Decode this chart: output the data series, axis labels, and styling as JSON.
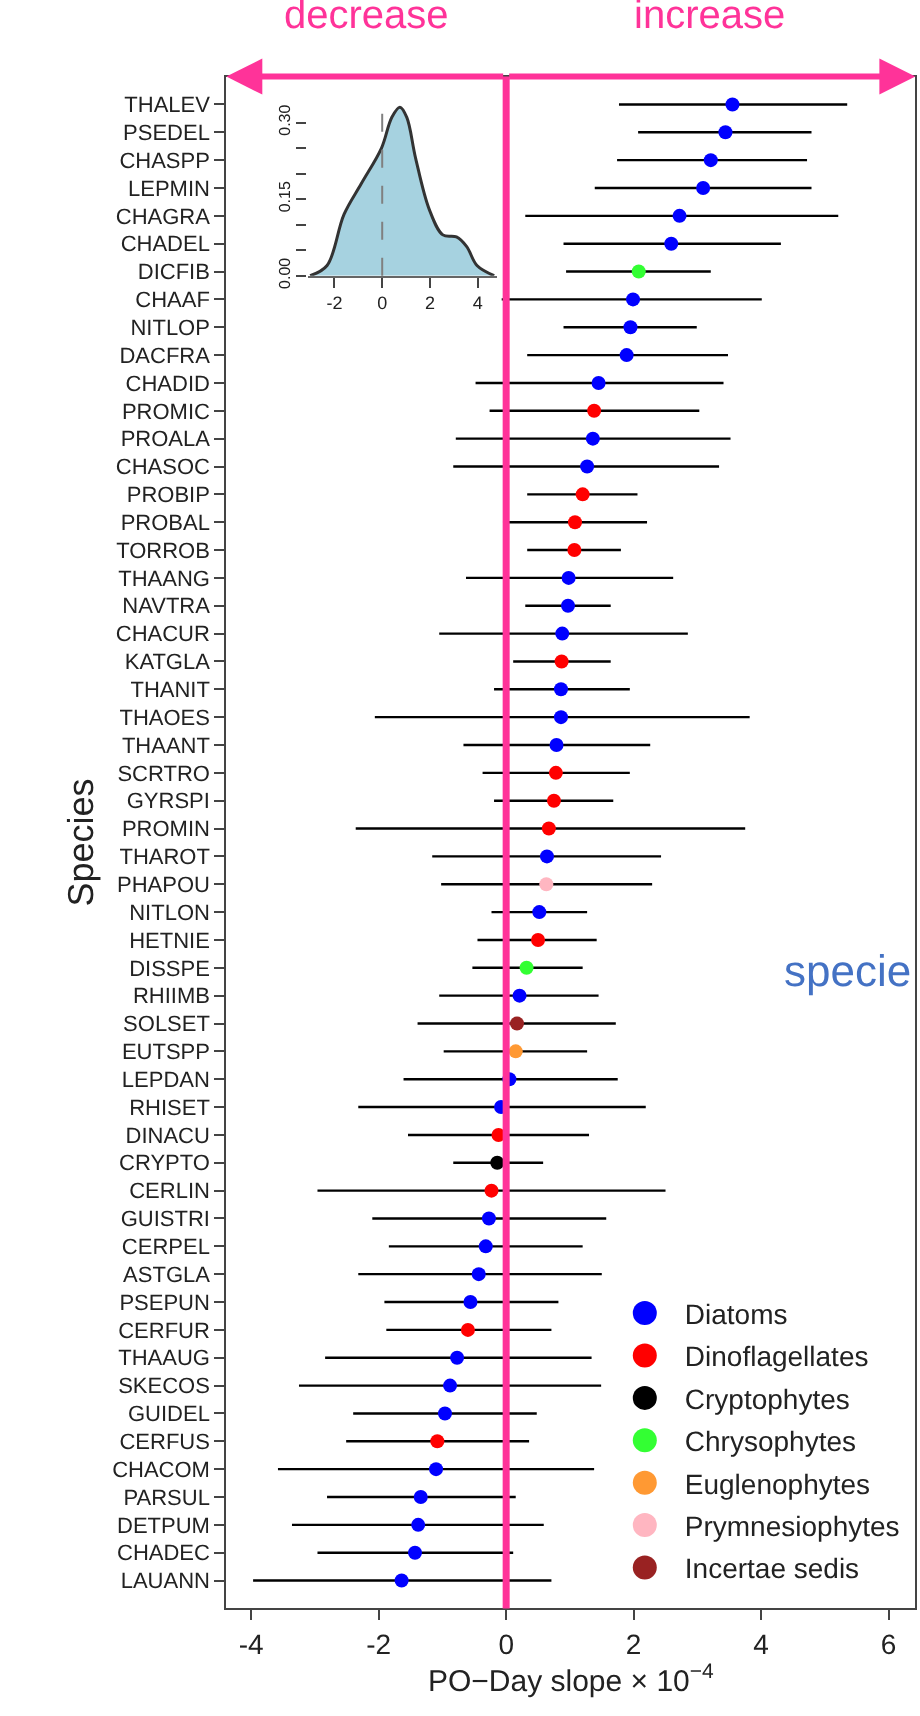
{
  "chart_data": [
    {
      "type": "scatter",
      "orientation": "horizontal",
      "xlabel": "PO−Day slope × 10$^{−4}$",
      "ylabel": "Species",
      "categories": [
        "THALEV",
        "PSEDEL",
        "CHASPP",
        "LEPMIN",
        "CHAGRA",
        "CHADEL",
        "DICFIB",
        "CHAAF",
        "NITLOP",
        "DACFRA",
        "CHADID",
        "PROMIC",
        "PROALA",
        "CHASOC",
        "PROBIP",
        "PROBAL",
        "TORROB",
        "THAANG",
        "NAVTRA",
        "CHACUR",
        "KATGLA",
        "THANIT",
        "THAOES",
        "THAANT",
        "SCRTRO",
        "GYRSPI",
        "PROMIN",
        "THAROT",
        "PHAPOU",
        "NITLON",
        "HETNIE",
        "DISSPE",
        "RHIIMB",
        "SOLSET",
        "EUTSPP",
        "LEPDAN",
        "RHISET",
        "DINACU",
        "CRYPTO",
        "CERLIN",
        "GUISTRI",
        "CERPEL",
        "ASTGLA",
        "PSEPUN",
        "CERFUR",
        "THAAUG",
        "SKECOS",
        "GUIDEL",
        "CERFUS",
        "CHACOM",
        "PARSUL",
        "DETPUM",
        "CHADEC",
        "LAUANN"
      ],
      "series": [
        {
          "name": "Diatoms",
          "color": "#0000ff",
          "values": [
            3.55,
            3.44,
            3.21,
            3.09,
            2.72,
            2.59,
            null,
            1.99,
            1.95,
            1.89,
            1.45,
            null,
            1.36,
            1.27,
            null,
            null,
            null,
            0.98,
            0.97,
            0.88,
            null,
            0.86,
            0.86,
            0.79,
            null,
            null,
            null,
            0.64,
            null,
            0.52,
            null,
            null,
            0.21,
            null,
            null,
            0.05,
            -0.08,
            null,
            null,
            null,
            -0.27,
            -0.32,
            -0.43,
            -0.56,
            null,
            -0.77,
            -0.88,
            -0.96,
            null,
            -1.1,
            -1.34,
            -1.38,
            -1.43,
            -1.64
          ],
          "errors": [
            [
              1.77,
              5.35
            ],
            [
              2.07,
              4.79
            ],
            [
              1.74,
              4.72
            ],
            [
              1.39,
              4.79
            ],
            [
              0.3,
              5.21
            ],
            [
              0.9,
              4.31
            ],
            null,
            [
              -0.07,
              4.01
            ],
            [
              0.9,
              2.99
            ],
            [
              0.33,
              3.48
            ],
            [
              -0.48,
              3.41
            ],
            null,
            [
              -0.79,
              3.52
            ],
            [
              -0.83,
              3.34
            ],
            null,
            null,
            null,
            [
              -0.63,
              2.62
            ],
            [
              0.3,
              1.64
            ],
            [
              -1.05,
              2.85
            ],
            null,
            [
              -0.19,
              1.94
            ],
            [
              -2.06,
              3.82
            ],
            [
              -0.67,
              2.26
            ],
            null,
            null,
            null,
            [
              -1.16,
              2.43
            ],
            null,
            [
              -0.23,
              1.27
            ],
            null,
            null,
            [
              -1.05,
              1.45
            ],
            null,
            null,
            [
              -1.61,
              1.75
            ],
            [
              -2.32,
              2.19
            ],
            null,
            null,
            null,
            [
              -2.1,
              1.57
            ],
            [
              -1.84,
              1.2
            ],
            [
              -2.32,
              1.5
            ],
            [
              -1.91,
              0.82
            ],
            null,
            [
              -2.84,
              1.34
            ],
            [
              -3.25,
              1.49
            ],
            [
              -2.4,
              0.48
            ],
            null,
            [
              -3.58,
              1.38
            ],
            [
              -2.81,
              0.15
            ],
            [
              -3.36,
              0.59
            ],
            [
              -2.96,
              0.11
            ],
            [
              -3.97,
              0.71
            ]
          ]
        },
        {
          "name": "Dinoflagellates",
          "color": "#ff0000",
          "values": [
            null,
            null,
            null,
            null,
            null,
            null,
            null,
            null,
            null,
            null,
            null,
            1.38,
            null,
            null,
            1.2,
            1.08,
            1.07,
            null,
            null,
            null,
            0.87,
            null,
            null,
            null,
            0.78,
            0.75,
            0.67,
            null,
            null,
            null,
            0.5,
            null,
            null,
            null,
            null,
            null,
            null,
            -0.12,
            null,
            -0.23,
            null,
            null,
            null,
            null,
            -0.6,
            null,
            null,
            null,
            -1.08,
            null,
            null,
            null,
            null,
            null
          ],
          "errors": [
            null,
            null,
            null,
            null,
            null,
            null,
            null,
            null,
            null,
            null,
            null,
            [
              -0.26,
              3.03
            ],
            null,
            null,
            [
              0.33,
              2.06
            ],
            [
              -0.05,
              2.21
            ],
            [
              0.33,
              1.8
            ],
            null,
            null,
            null,
            [
              0.11,
              1.64
            ],
            null,
            null,
            null,
            [
              -0.37,
              1.94
            ],
            [
              -0.19,
              1.68
            ],
            [
              -2.36,
              3.75
            ],
            null,
            null,
            null,
            [
              -0.45,
              1.42
            ],
            null,
            null,
            null,
            null,
            null,
            null,
            [
              -1.54,
              1.3
            ],
            null,
            [
              -2.96,
              2.5
            ],
            null,
            null,
            null,
            null,
            [
              -1.88,
              0.71
            ],
            null,
            null,
            null,
            [
              -2.51,
              0.36
            ],
            null,
            null,
            null,
            null,
            null
          ]
        },
        {
          "name": "Cryptophytes",
          "color": "#000000",
          "values": [
            null,
            null,
            null,
            null,
            null,
            null,
            null,
            null,
            null,
            null,
            null,
            null,
            null,
            null,
            null,
            null,
            null,
            null,
            null,
            null,
            null,
            null,
            null,
            null,
            null,
            null,
            null,
            null,
            null,
            null,
            null,
            null,
            null,
            null,
            null,
            null,
            null,
            null,
            -0.14,
            null,
            null,
            null,
            null,
            null,
            null,
            null,
            null,
            null,
            null,
            null,
            null,
            null,
            null,
            null
          ],
          "errors": [
            null,
            null,
            null,
            null,
            null,
            null,
            null,
            null,
            null,
            null,
            null,
            null,
            null,
            null,
            null,
            null,
            null,
            null,
            null,
            null,
            null,
            null,
            null,
            null,
            null,
            null,
            null,
            null,
            null,
            null,
            null,
            null,
            null,
            null,
            null,
            null,
            null,
            null,
            [
              -0.83,
              0.58
            ],
            null,
            null,
            null,
            null,
            null,
            null,
            null,
            null,
            null,
            null,
            null,
            null,
            null,
            null,
            null
          ]
        },
        {
          "name": "Chrysophytes",
          "color": "#33ff33",
          "values": [
            null,
            null,
            null,
            null,
            null,
            null,
            2.08,
            null,
            null,
            null,
            null,
            null,
            null,
            null,
            null,
            null,
            null,
            null,
            null,
            null,
            null,
            null,
            null,
            null,
            null,
            null,
            null,
            null,
            null,
            null,
            null,
            0.32,
            null,
            null,
            null,
            null,
            null,
            null,
            null,
            null,
            null,
            null,
            null,
            null,
            null,
            null,
            null,
            null,
            null,
            null,
            null,
            null,
            null,
            null
          ],
          "errors": [
            null,
            null,
            null,
            null,
            null,
            null,
            [
              0.94,
              3.21
            ],
            null,
            null,
            null,
            null,
            null,
            null,
            null,
            null,
            null,
            null,
            null,
            null,
            null,
            null,
            null,
            null,
            null,
            null,
            null,
            null,
            null,
            null,
            null,
            null,
            [
              -0.53,
              1.2
            ],
            null,
            null,
            null,
            null,
            null,
            null,
            null,
            null,
            null,
            null,
            null,
            null,
            null,
            null,
            null,
            null,
            null,
            null,
            null,
            null,
            null,
            null
          ]
        },
        {
          "name": "Euglenophytes",
          "color": "#ff9933",
          "values": [
            null,
            null,
            null,
            null,
            null,
            null,
            null,
            null,
            null,
            null,
            null,
            null,
            null,
            null,
            null,
            null,
            null,
            null,
            null,
            null,
            null,
            null,
            null,
            null,
            null,
            null,
            null,
            null,
            null,
            null,
            null,
            null,
            null,
            null,
            0.15,
            null,
            null,
            null,
            null,
            null,
            null,
            null,
            null,
            null,
            null,
            null,
            null,
            null,
            null,
            null,
            null,
            null,
            null,
            null
          ],
          "errors": [
            null,
            null,
            null,
            null,
            null,
            null,
            null,
            null,
            null,
            null,
            null,
            null,
            null,
            null,
            null,
            null,
            null,
            null,
            null,
            null,
            null,
            null,
            null,
            null,
            null,
            null,
            null,
            null,
            null,
            null,
            null,
            null,
            null,
            null,
            [
              -0.98,
              1.27
            ],
            null,
            null,
            null,
            null,
            null,
            null,
            null,
            null,
            null,
            null,
            null,
            null,
            null,
            null,
            null,
            null,
            null,
            null,
            null
          ]
        },
        {
          "name": "Prymnesiophytes",
          "color": "#ffb6c1",
          "values": [
            null,
            null,
            null,
            null,
            null,
            null,
            null,
            null,
            null,
            null,
            null,
            null,
            null,
            null,
            null,
            null,
            null,
            null,
            null,
            null,
            null,
            null,
            null,
            null,
            null,
            null,
            null,
            null,
            0.63,
            null,
            null,
            null,
            null,
            null,
            null,
            null,
            null,
            null,
            null,
            null,
            null,
            null,
            null,
            null,
            null,
            null,
            null,
            null,
            null,
            null,
            null,
            null,
            null,
            null
          ],
          "errors": [
            null,
            null,
            null,
            null,
            null,
            null,
            null,
            null,
            null,
            null,
            null,
            null,
            null,
            null,
            null,
            null,
            null,
            null,
            null,
            null,
            null,
            null,
            null,
            null,
            null,
            null,
            null,
            null,
            [
              -1.02,
              2.29
            ],
            null,
            null,
            null,
            null,
            null,
            null,
            null,
            null,
            null,
            null,
            null,
            null,
            null,
            null,
            null,
            null,
            null,
            null,
            null,
            null,
            null,
            null,
            null,
            null,
            null
          ]
        },
        {
          "name": "Incertae sedis",
          "color": "#992222",
          "values": [
            null,
            null,
            null,
            null,
            null,
            null,
            null,
            null,
            null,
            null,
            null,
            null,
            null,
            null,
            null,
            null,
            null,
            null,
            null,
            null,
            null,
            null,
            null,
            null,
            null,
            null,
            null,
            null,
            null,
            null,
            null,
            null,
            null,
            0.17,
            null,
            null,
            null,
            null,
            null,
            null,
            null,
            null,
            null,
            null,
            null,
            null,
            null,
            null,
            null,
            null,
            null,
            null,
            null,
            null
          ],
          "errors": [
            null,
            null,
            null,
            null,
            null,
            null,
            null,
            null,
            null,
            null,
            null,
            null,
            null,
            null,
            null,
            null,
            null,
            null,
            null,
            null,
            null,
            null,
            null,
            null,
            null,
            null,
            null,
            null,
            null,
            null,
            null,
            null,
            null,
            [
              -1.39,
              1.72
            ],
            null,
            null,
            null,
            null,
            null,
            null,
            null,
            null,
            null,
            null,
            null,
            null,
            null,
            null,
            null,
            null,
            null,
            null,
            null,
            null
          ]
        }
      ],
      "xlim": [
        -4.39,
        6.42
      ],
      "xticks": [
        -4,
        -2,
        0,
        2,
        4,
        6
      ],
      "ref_lines": [
        {
          "axis": "x",
          "value": 0,
          "color": "#ff3399"
        }
      ],
      "annotations": [
        "decrease",
        "increase",
        "specie"
      ],
      "legend": "bottom right",
      "marker": "circle"
    },
    {
      "type": "area",
      "color": "#a6d2e0",
      "x": [
        -3.02,
        -2.31,
        -1.6,
        -0.88,
        -0.03,
        0.4,
        0.74,
        1.03,
        1.4,
        1.97,
        2.54,
        3.11,
        3.54,
        3.97,
        4.69
      ],
      "values": [
        0.0,
        0.02,
        0.12,
        0.18,
        0.25,
        0.31,
        0.33,
        0.31,
        0.23,
        0.13,
        0.08,
        0.076,
        0.057,
        0.02,
        0.0
      ],
      "xlim": [
        -3.1,
        4.8
      ],
      "ylim": [
        0,
        0.34
      ],
      "xticks": [
        -2,
        0,
        2,
        4
      ],
      "yticks": [
        {
          "value": 0,
          "label": "0.00"
        },
        {
          "value": 0.05,
          "label": null
        },
        {
          "value": 0.1,
          "label": null
        },
        {
          "value": 0.15,
          "label": "0.15"
        },
        {
          "value": 0.2,
          "label": null
        },
        {
          "value": 0.25,
          "label": null
        },
        {
          "value": 0.3,
          "label": "0.30"
        }
      ],
      "ref_lines": [
        {
          "axis": "x",
          "value": 0,
          "color": "#808080",
          "line_style": "dashed"
        }
      ]
    }
  ]
}
